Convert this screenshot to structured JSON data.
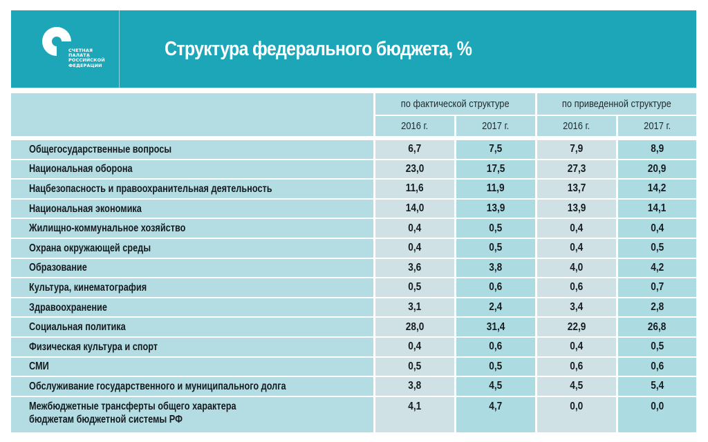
{
  "banner": {
    "logo_lines": [
      "СЧЕТНАЯ",
      "ПАЛАТА",
      "РОССИЙСКОЙ",
      "ФЕДЕРАЦИИ"
    ],
    "logo_icon": "accounts-chamber-logo-icon",
    "title": "Структура федерального бюджета, %"
  },
  "colors": {
    "banner": "#1ca6b8",
    "header_cell": "#b3dde3",
    "cell_grey": "#cfe1e4",
    "cell_blue": "#acdbe2"
  },
  "table": {
    "groups": [
      "по фактической структуре",
      "по приведенной структуре"
    ],
    "years": [
      "2016 г.",
      "2017 г.",
      "2016 г.",
      "2017 г."
    ],
    "rows": [
      {
        "label": "Общегосударственные вопросы",
        "values": [
          "6,7",
          "7,5",
          "7,9",
          "8,9"
        ]
      },
      {
        "label": "Национальная оборона",
        "values": [
          "23,0",
          "17,5",
          "27,3",
          "20,9"
        ]
      },
      {
        "label": "Нацбезопасность и правоохранительная деятельность",
        "values": [
          "11,6",
          "11,9",
          "13,7",
          "14,2"
        ]
      },
      {
        "label": "Национальная экономика",
        "values": [
          "14,0",
          "13,9",
          "13,9",
          "14,1"
        ]
      },
      {
        "label": "Жилищно-коммунальное хозяйство",
        "values": [
          "0,4",
          "0,5",
          "0,4",
          "0,4"
        ]
      },
      {
        "label": "Охрана окружающей среды",
        "values": [
          "0,4",
          "0,5",
          "0,4",
          "0,5"
        ]
      },
      {
        "label": "Образование",
        "values": [
          "3,6",
          "3,8",
          "4,0",
          "4,2"
        ]
      },
      {
        "label": "Культура, кинематография",
        "values": [
          "0,5",
          "0,6",
          "0,6",
          "0,7"
        ]
      },
      {
        "label": "Здравоохранение",
        "values": [
          "3,1",
          "2,4",
          "3,4",
          "2,8"
        ]
      },
      {
        "label": "Социальная политика",
        "values": [
          "28,0",
          "31,4",
          "22,9",
          "26,8"
        ]
      },
      {
        "label": "Физическая культура и спорт",
        "values": [
          "0,4",
          "0,6",
          "0,4",
          "0,5"
        ]
      },
      {
        "label": "СМИ",
        "values": [
          "0,5",
          "0,5",
          "0,6",
          "0,6"
        ]
      },
      {
        "label": "Обслуживание государственного и муниципального долга",
        "values": [
          "3,8",
          "4,5",
          "4,5",
          "5,4"
        ]
      },
      {
        "label_lines": [
          "Межбюджетные трансферты общего характера",
          "бюджетам бюджетной системы РФ"
        ],
        "values": [
          "4,1",
          "4,7",
          "0,0",
          "0,0"
        ]
      }
    ]
  }
}
